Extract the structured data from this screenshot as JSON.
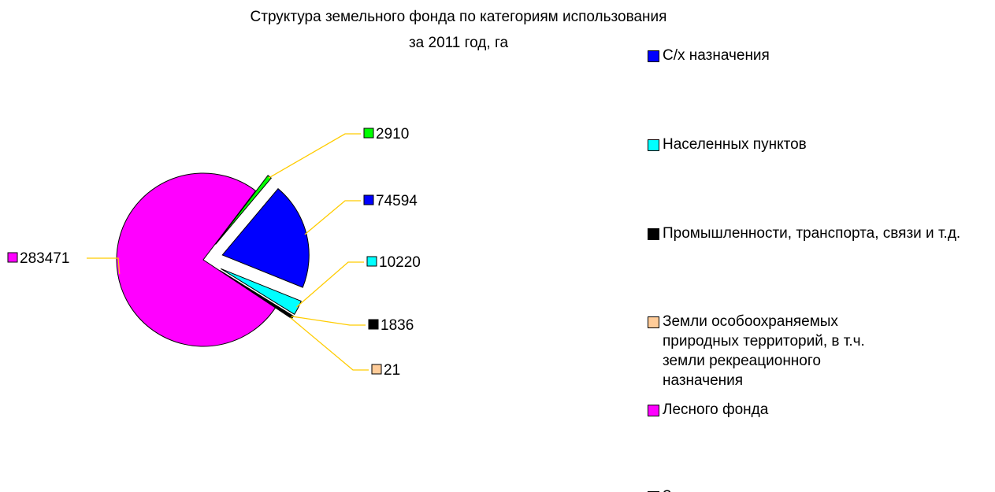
{
  "chart_data": {
    "type": "pie",
    "title": [
      "Структура земельного фонда по категориям использования",
      "за 2011 год, га"
    ],
    "categories": [
      "С/х назначения",
      "Населенных пунктов",
      "Промышленности, транспорта, связи и т.д.",
      "Земли особоохраняемых природных территорий, в т.ч. земли рекреационного назначения",
      "Лесного фонда",
      "Земли запаса"
    ],
    "values": [
      74594,
      10220,
      1836,
      21,
      283471,
      2910
    ],
    "colors": [
      "#0000ff",
      "#00ffff",
      "#000000",
      "#ffcc99",
      "#ff00ff",
      "#00ff00"
    ],
    "legend": "right"
  }
}
